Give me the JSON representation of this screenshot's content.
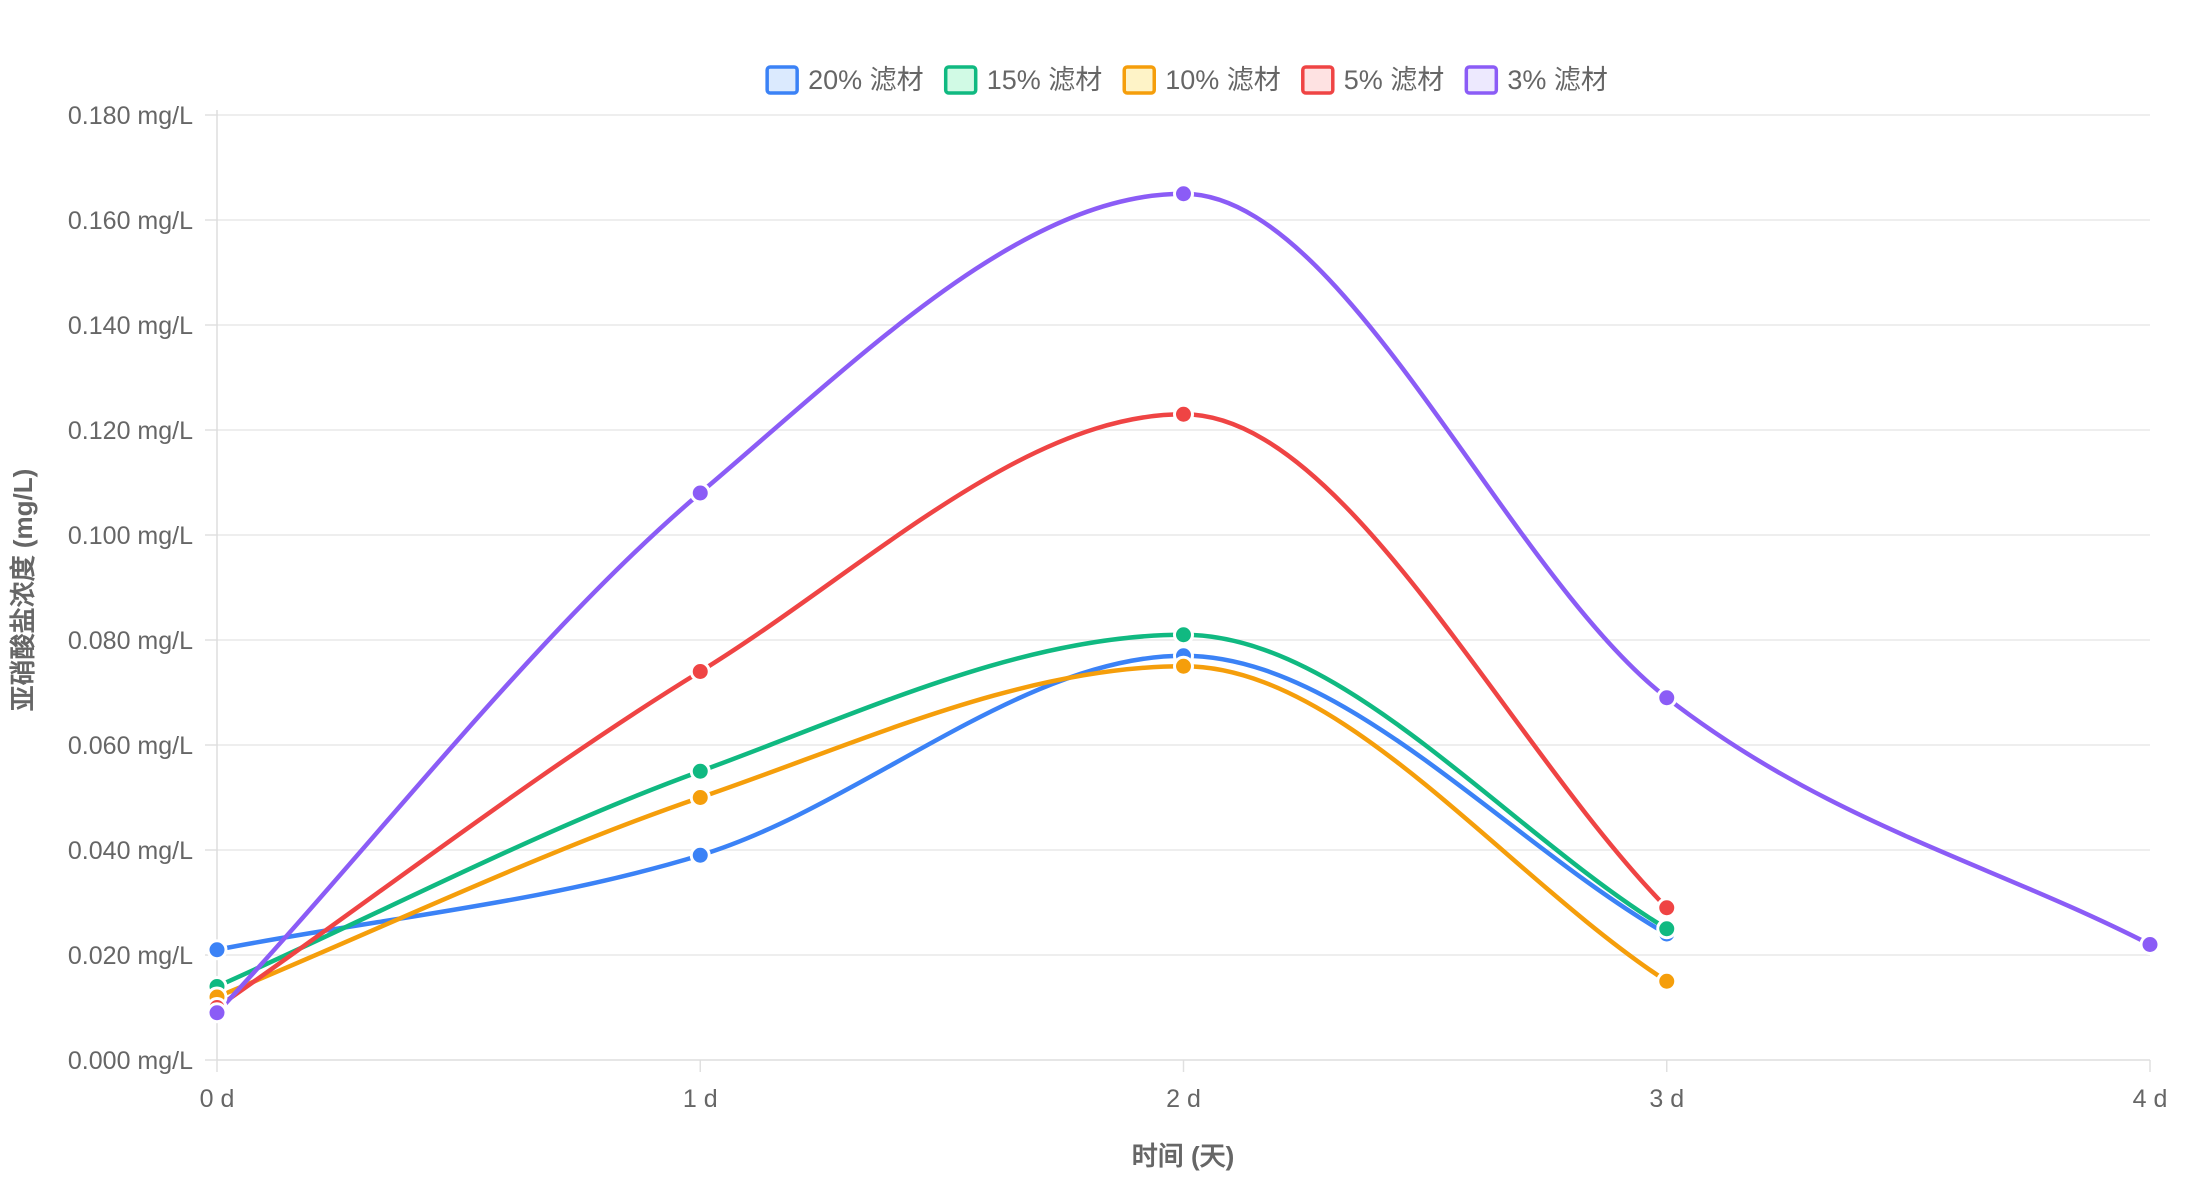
{
  "chart_data": {
    "type": "line",
    "categories": [
      "0 d",
      "1 d",
      "2 d",
      "3 d",
      "4 d"
    ],
    "xlabel": "时间 (天)",
    "ylabel": "亚硝酸盐浓度 (mg/L)",
    "ylim": [
      0,
      0.18
    ],
    "yticks": [
      "0.000 mg/L",
      "0.020 mg/L",
      "0.040 mg/L",
      "0.060 mg/L",
      "0.080 mg/L",
      "0.100 mg/L",
      "0.120 mg/L",
      "0.140 mg/L",
      "0.160 mg/L",
      "0.180 mg/L"
    ],
    "grid": true,
    "legend_position": "top",
    "series": [
      {
        "name": "20% 滤材",
        "color": "#3b82f6",
        "fill": "#dbeafe",
        "values": [
          0.021,
          0.039,
          0.077,
          0.024,
          null
        ]
      },
      {
        "name": "15% 滤材",
        "color": "#10b981",
        "fill": "#d1fae5",
        "values": [
          0.014,
          0.055,
          0.081,
          0.025,
          null
        ]
      },
      {
        "name": "10% 滤材",
        "color": "#f59e0b",
        "fill": "#fef3c7",
        "values": [
          0.012,
          0.05,
          0.075,
          0.015,
          null
        ]
      },
      {
        "name": "5% 滤材",
        "color": "#ef4444",
        "fill": "#fee2e2",
        "values": [
          0.01,
          0.074,
          0.123,
          0.029,
          null
        ]
      },
      {
        "name": "3% 滤材",
        "color": "#8b5cf6",
        "fill": "#ede9fe",
        "values": [
          0.009,
          0.108,
          0.165,
          0.069,
          0.022
        ]
      }
    ]
  }
}
